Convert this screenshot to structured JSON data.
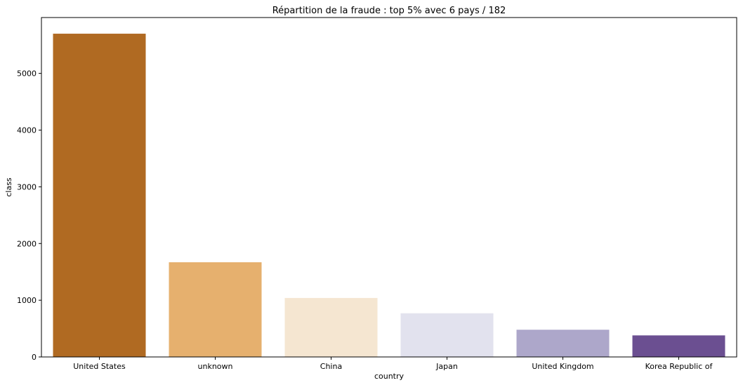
{
  "chart_data": {
    "type": "bar",
    "title": "Répartition de la fraude : top 5% avec 6 pays / 182",
    "xlabel": "country",
    "ylabel": "class",
    "categories": [
      "United States",
      "unknown",
      "China",
      "Japan",
      "United Kingdom",
      "Korea Republic of"
    ],
    "values": [
      5700,
      1670,
      1040,
      770,
      480,
      380
    ],
    "colors": [
      "#b06a22",
      "#e6b06e",
      "#f5e6d1",
      "#e2e2ee",
      "#ada7ca",
      "#6b4f91"
    ],
    "ylim": [
      0,
      5985
    ],
    "yticks": [
      0,
      1000,
      2000,
      3000,
      4000,
      5000
    ],
    "grid": false,
    "legend": "none"
  }
}
